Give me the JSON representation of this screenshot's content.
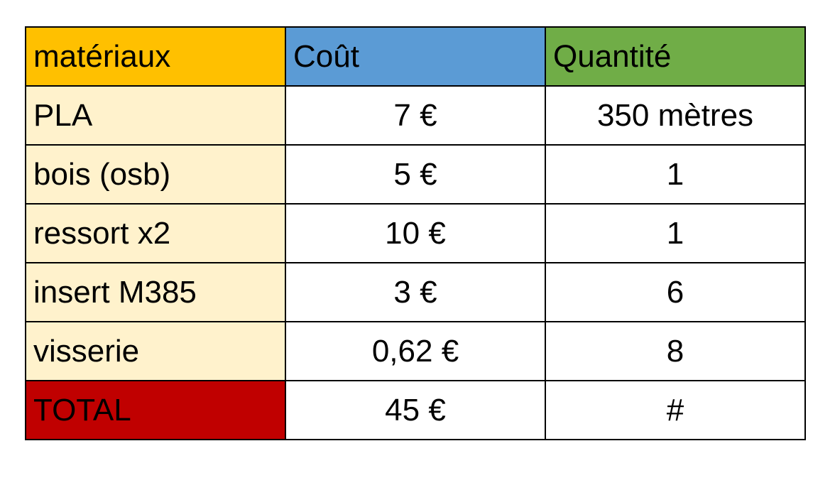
{
  "colors": {
    "header_materials": "#FFC000",
    "header_cost": "#5B9BD5",
    "header_quantity": "#70AD47",
    "material_cells": "#FFF2CC",
    "total_cell": "#C00000"
  },
  "headers": [
    "matériaux",
    "Coût",
    "Quantité"
  ],
  "rows": [
    {
      "material": "PLA",
      "cost": "7 €",
      "quantity": "350 mètres"
    },
    {
      "material": "bois (osb)",
      "cost": "5 €",
      "quantity": "1"
    },
    {
      "material": "ressort x2",
      "cost": "10 €",
      "quantity": "1"
    },
    {
      "material": "insert M385",
      "cost": "3 €",
      "quantity": "6"
    },
    {
      "material": "visserie",
      "cost": "0,62 €",
      "quantity": "8"
    }
  ],
  "total": {
    "label": "TOTAL",
    "cost": "45 €",
    "quantity": "#"
  }
}
